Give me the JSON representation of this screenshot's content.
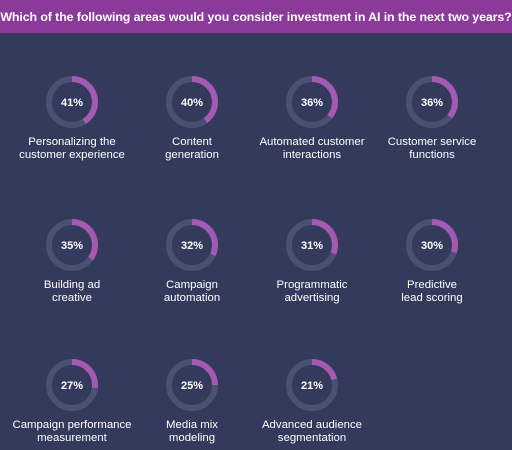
{
  "title": "Which of the following areas would you consider investment in AI in the next two years?",
  "colors": {
    "background": "#333a5b",
    "title_bar": "#8a3a98",
    "arc": "#a459b3",
    "track": "#4a5172",
    "text": "#ffffff"
  },
  "chart_data": {
    "type": "donut-grid",
    "title": "Which of the following areas would you consider investment in AI in the next two years?",
    "categories": [
      "Personalizing the\ncustomer experience",
      "Content\ngeneration",
      "Automated customer\ninteractions",
      "Customer service\nfunctions",
      "Building ad\ncreative",
      "Campaign\nautomation",
      "Programmatic\nadvertising",
      "Predictive\nlead scoring",
      "Campaign performance\nmeasurement",
      "Media mix\nmodeling",
      "Advanced audience\nsegmentation"
    ],
    "values": [
      41,
      40,
      36,
      36,
      35,
      32,
      31,
      30,
      27,
      25,
      21
    ],
    "value_labels": [
      "41%",
      "40%",
      "36%",
      "36%",
      "35%",
      "32%",
      "31%",
      "30%",
      "27%",
      "25%",
      "21%"
    ],
    "unit": "%",
    "max": 100
  }
}
